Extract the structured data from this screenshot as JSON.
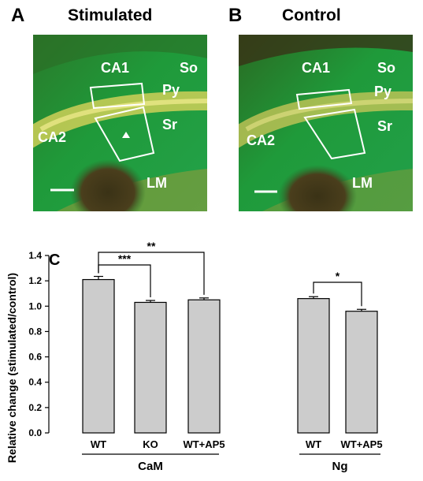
{
  "panel_a": {
    "letter": "A",
    "title": "Stimulated",
    "labels": {
      "ca1": "CA1",
      "so": "So",
      "py": "Py",
      "ca2": "CA2",
      "sr": "Sr",
      "lm": "LM"
    },
    "arrowhead": "arrowhead-icon",
    "scale_bar": "scale-bar"
  },
  "panel_b": {
    "letter": "B",
    "title": "Control",
    "labels": {
      "ca1": "CA1",
      "so": "So",
      "py": "Py",
      "ca2": "CA2",
      "sr": "Sr",
      "lm": "LM"
    },
    "scale_bar": "scale-bar"
  },
  "panel_c": {
    "letter": "C"
  },
  "colors": {
    "tissue_green": "#1f9a3a",
    "pyramidal_yellow": "#d9d35a",
    "bar_fill": "#cccccc"
  },
  "chart_data": {
    "type": "bar",
    "ylabel": "Relative change (stimulated/control)",
    "ylim": [
      0,
      1.4
    ],
    "yticks": [
      "0.0",
      "0.2",
      "0.4",
      "0.6",
      "0.8",
      "1.0",
      "1.2",
      "1.4"
    ],
    "groups": [
      {
        "name": "CaM",
        "categories": [
          "WT",
          "KO",
          "WT+AP5"
        ],
        "values": [
          1.21,
          1.03,
          1.05
        ],
        "errors": [
          0.025,
          0.015,
          0.015
        ]
      },
      {
        "name": "Ng",
        "categories": [
          "WT",
          "WT+AP5"
        ],
        "values": [
          1.06,
          0.96
        ],
        "errors": [
          0.015,
          0.015
        ]
      }
    ],
    "significance": [
      {
        "label": "***",
        "group": 0,
        "from": 0,
        "to": 1
      },
      {
        "label": "**",
        "group": 0,
        "from": 0,
        "to": 2
      },
      {
        "label": "*",
        "group": 1,
        "from": 0,
        "to": 1
      }
    ]
  }
}
